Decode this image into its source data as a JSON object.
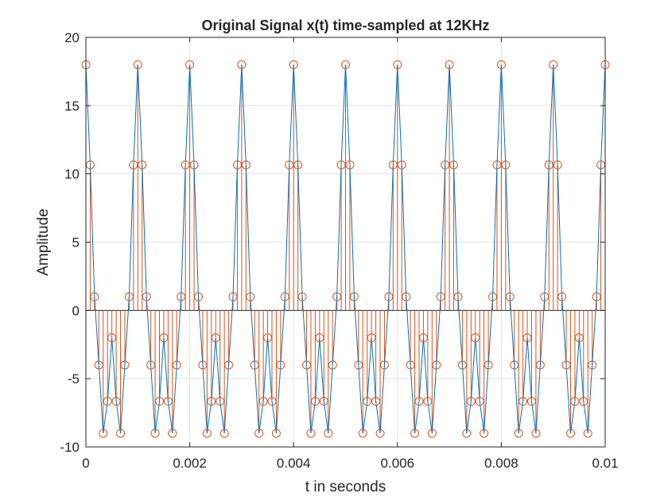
{
  "chart_data": {
    "type": "line",
    "title": "Original Signal x(t) time-sampled at 12KHz",
    "xlabel": "t in seconds",
    "ylabel": "Amplitude",
    "xlim": [
      0,
      0.01
    ],
    "ylim": [
      -10,
      20
    ],
    "grid": true,
    "x_ticks": [
      0,
      0.002,
      0.004,
      0.006,
      0.008,
      0.01
    ],
    "x_tick_labels": [
      "0",
      "0.002",
      "0.004",
      "0.006",
      "0.008",
      "0.01"
    ],
    "y_ticks": [
      -10,
      -5,
      0,
      5,
      10,
      15,
      20
    ],
    "y_tick_labels": [
      "-10",
      "-5",
      "0",
      "5",
      "10",
      "15",
      "20"
    ],
    "sample_rate_hz": 12000,
    "period_samples": 12,
    "period_values": [
      18,
      10.66,
      1,
      -4,
      -9,
      -6.66,
      -2,
      -6.66,
      -9,
      -4,
      1,
      10.66
    ],
    "num_samples": 121,
    "series": [
      {
        "style": "line",
        "color": "#0072BD"
      },
      {
        "style": "stem",
        "color": "#D95319",
        "marker": "circle"
      }
    ]
  }
}
